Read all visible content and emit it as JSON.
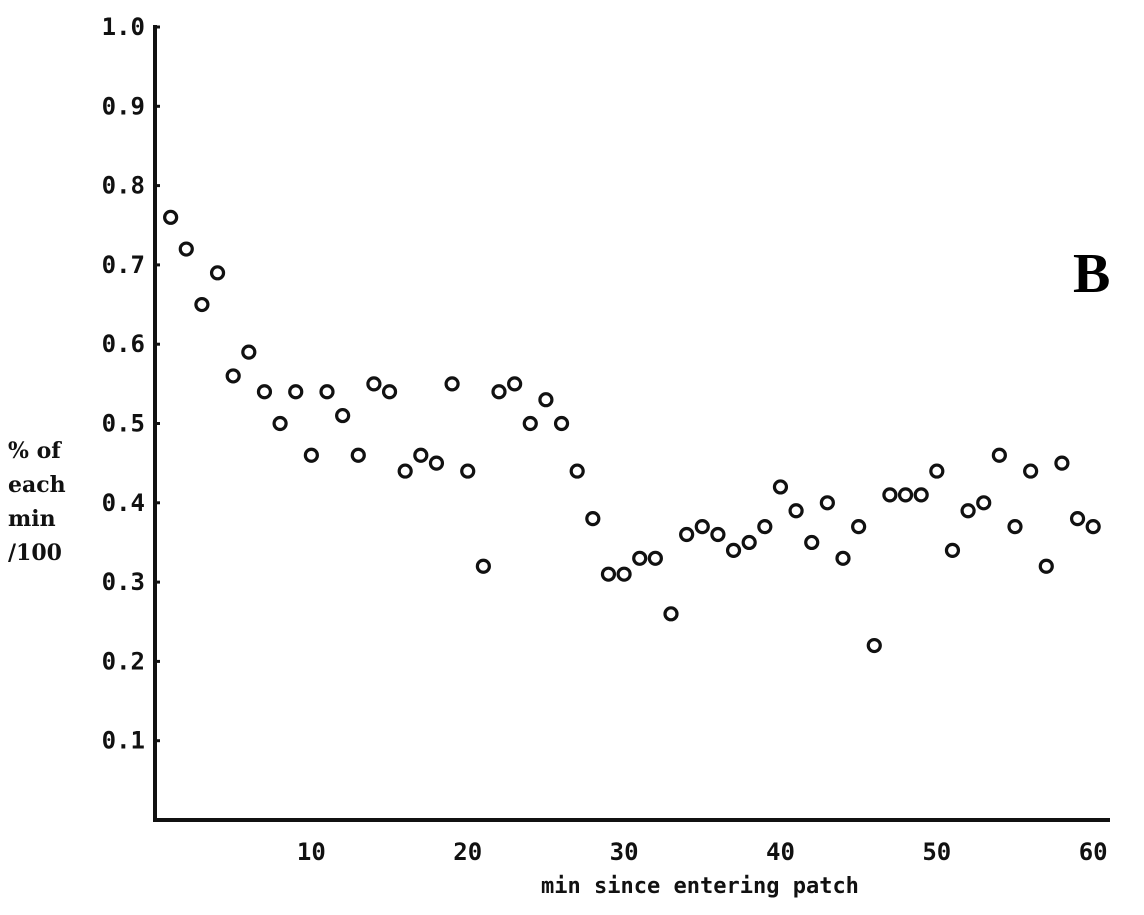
{
  "chart_data": {
    "type": "scatter",
    "panel_label": "B",
    "xlabel": "min since entering patch",
    "ylabel_lines": [
      "% of",
      "each",
      "min",
      "/100"
    ],
    "xlim": [
      0,
      60.5
    ],
    "ylim": [
      0,
      1.0
    ],
    "x_ticks": [
      10,
      20,
      30,
      40,
      50,
      60
    ],
    "y_ticks": [
      {
        "value": 0.1,
        "label": "0.1"
      },
      {
        "value": 0.2,
        "label": "0.2"
      },
      {
        "value": 0.3,
        "label": "0.3"
      },
      {
        "value": 0.4,
        "label": "0.4"
      },
      {
        "value": 0.5,
        "label": "0.5"
      },
      {
        "value": 0.6,
        "label": "0.6"
      },
      {
        "value": 0.7,
        "label": "0.7"
      },
      {
        "value": 0.8,
        "label": "0.8"
      },
      {
        "value": 0.9,
        "label": "0.9"
      },
      {
        "value": 1.0,
        "label": "1.0"
      }
    ],
    "marker": "open-circle",
    "x": [
      1,
      2,
      3,
      4,
      5,
      6,
      7,
      8,
      9,
      10,
      11,
      12,
      13,
      14,
      15,
      16,
      17,
      18,
      19,
      20,
      21,
      22,
      23,
      24,
      25,
      26,
      27,
      28,
      29,
      30,
      31,
      32,
      33,
      34,
      35,
      36,
      37,
      38,
      39,
      40,
      41,
      42,
      43,
      44,
      45,
      46,
      47,
      48,
      49,
      50,
      51,
      52,
      53,
      54,
      55,
      56,
      57,
      58,
      59,
      60
    ],
    "y": [
      0.76,
      0.72,
      0.65,
      0.69,
      0.56,
      0.59,
      0.54,
      0.5,
      0.54,
      0.46,
      0.54,
      0.51,
      0.46,
      0.55,
      0.54,
      0.44,
      0.46,
      0.45,
      0.55,
      0.44,
      0.32,
      0.54,
      0.55,
      0.5,
      0.53,
      0.5,
      0.44,
      0.38,
      0.31,
      0.31,
      0.33,
      0.33,
      0.26,
      0.36,
      0.37,
      0.36,
      0.34,
      0.35,
      0.37,
      0.42,
      0.39,
      0.35,
      0.4,
      0.33,
      0.37,
      0.22,
      0.41,
      0.41,
      0.41,
      0.44,
      0.34,
      0.39,
      0.4,
      0.46,
      0.37,
      0.44,
      0.32,
      0.45,
      0.38,
      0.37
    ]
  }
}
